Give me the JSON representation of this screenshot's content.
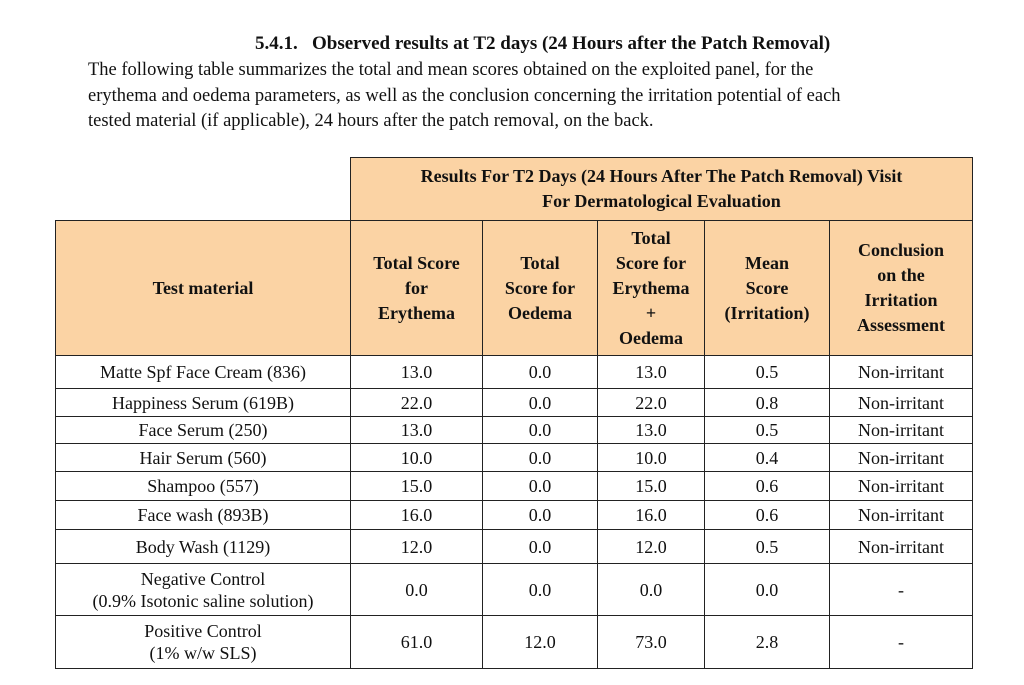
{
  "section": {
    "heading": "5.4.1.   Observed results at T2 days (24 Hours after the Patch Removal)",
    "paragraph_lines": [
      "The following table summarizes the total and mean scores obtained on the exploited panel, for the",
      "erythema and oedema parameters, as well as the conclusion concerning the irritation potential of each",
      "tested material (if applicable), 24 hours after the patch removal, on the back."
    ]
  },
  "table": {
    "group_header": "Results For T2 Days (24 Hours After The Patch Removal) Visit\nFor Dermatological Evaluation",
    "columns": [
      "Test material",
      "Total Score\nfor\nErythema",
      "Total\nScore for\nOedema",
      "Total\nScore for\nErythema\n+\nOedema",
      "Mean\nScore\n(Irritation)",
      "Conclusion\non the\nIrritation\nAssessment"
    ],
    "rows": [
      [
        "Matte Spf Face Cream (836)",
        "13.0",
        "0.0",
        "13.0",
        "0.5",
        "Non-irritant"
      ],
      [
        "Happiness Serum (619B)",
        "22.0",
        "0.0",
        "22.0",
        "0.8",
        "Non-irritant"
      ],
      [
        "Face Serum (250)",
        "13.0",
        "0.0",
        "13.0",
        "0.5",
        "Non-irritant"
      ],
      [
        "Hair Serum (560)",
        "10.0",
        "0.0",
        "10.0",
        "0.4",
        "Non-irritant"
      ],
      [
        "Shampoo (557)",
        "15.0",
        "0.0",
        "15.0",
        "0.6",
        "Non-irritant"
      ],
      [
        "Face wash (893B)",
        "16.0",
        "0.0",
        "16.0",
        "0.6",
        "Non-irritant"
      ],
      [
        "Body Wash (1129)",
        "12.0",
        "0.0",
        "12.0",
        "0.5",
        "Non-irritant"
      ],
      [
        "Negative Control\n(0.9% Isotonic saline solution)",
        "0.0",
        "0.0",
        "0.0",
        "0.0",
        "-"
      ],
      [
        "Positive Control\n(1% w/w SLS)",
        "61.0",
        "12.0",
        "73.0",
        "2.8",
        "-"
      ]
    ]
  }
}
